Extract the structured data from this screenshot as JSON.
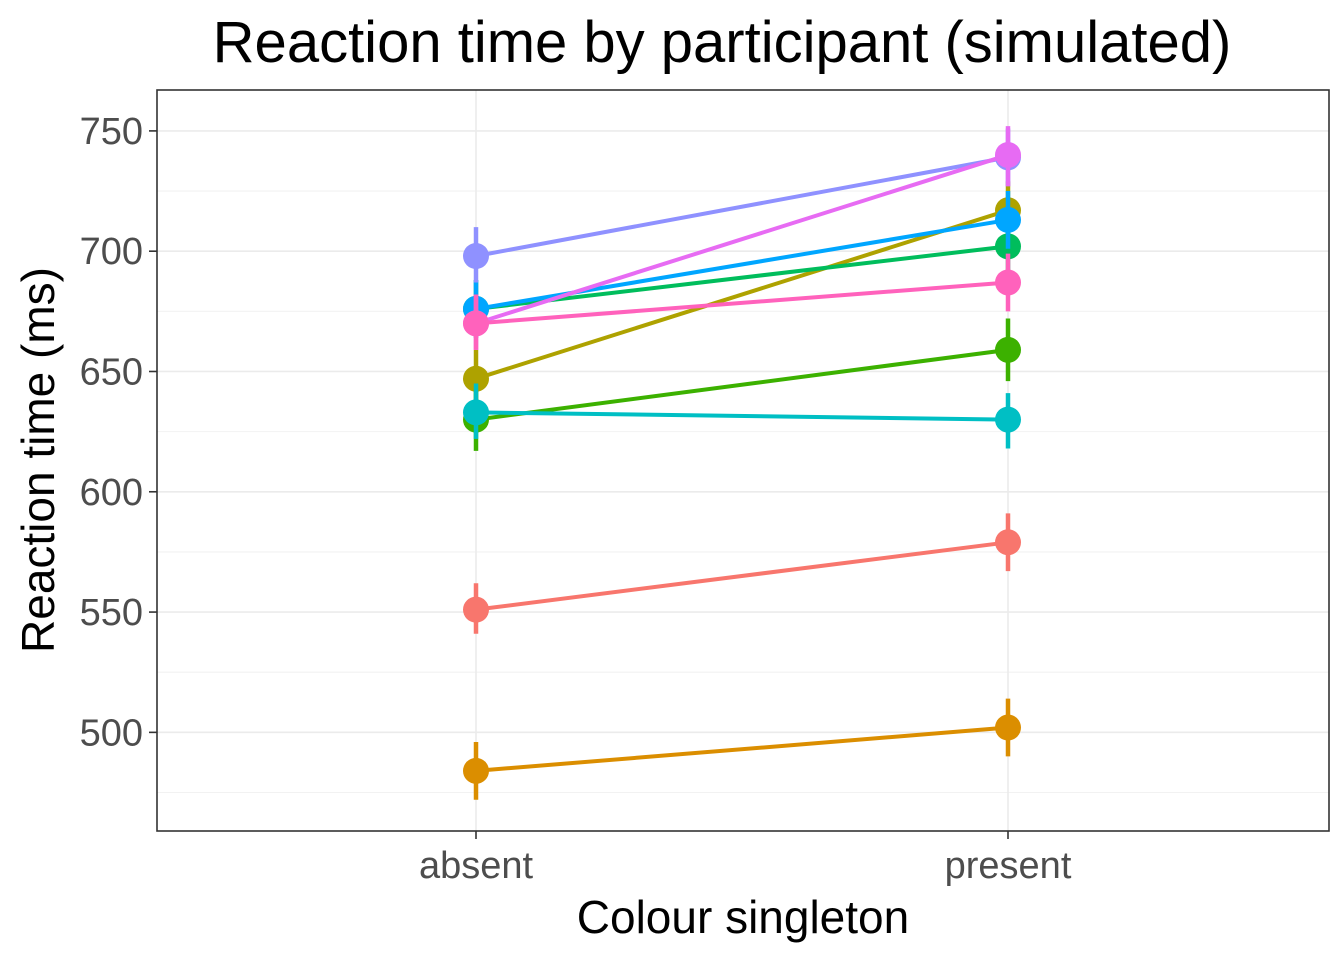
{
  "chart_data": {
    "type": "line",
    "title": "Reaction time by participant (simulated)",
    "xlabel": "Colour singleton",
    "ylabel": "Reaction time (ms)",
    "categories": [
      "absent",
      "present"
    ],
    "ylim": [
      459,
      767
    ],
    "yticks": [
      "500",
      "550",
      "600",
      "650",
      "700",
      "750"
    ],
    "grid": true,
    "legend": "none",
    "series": [
      {
        "color": "#F8766D",
        "values": [
          551,
          579
        ],
        "error": [
          [
            541,
            562
          ],
          [
            567,
            591
          ]
        ]
      },
      {
        "color": "#DB8E00",
        "values": [
          484,
          502
        ],
        "error": [
          [
            472,
            496
          ],
          [
            490,
            514
          ]
        ]
      },
      {
        "color": "#AEA200",
        "values": [
          647,
          717
        ],
        "error": [
          [
            636,
            659
          ],
          [
            705,
            729
          ]
        ]
      },
      {
        "color": "#3CB100",
        "values": [
          630,
          659
        ],
        "error": [
          [
            617,
            642
          ],
          [
            646,
            672
          ]
        ]
      },
      {
        "color": "#00BD5C",
        "values": [
          676,
          702
        ],
        "error": [
          [
            664,
            688
          ],
          [
            690,
            714
          ]
        ]
      },
      {
        "color": "#00BFC4",
        "values": [
          633,
          630
        ],
        "error": [
          [
            622,
            645
          ],
          [
            618,
            641
          ]
        ]
      },
      {
        "color": "#00A6FF",
        "values": [
          676,
          713
        ],
        "error": [
          [
            664,
            688
          ],
          [
            701,
            725
          ]
        ]
      },
      {
        "color": "#8F91FF",
        "values": [
          698,
          739
        ],
        "error": [
          [
            687,
            710
          ],
          [
            727,
            751
          ]
        ]
      },
      {
        "color": "#E76BF3",
        "values": [
          670,
          740
        ],
        "error": [
          [
            659,
            682
          ],
          [
            727,
            752
          ]
        ]
      },
      {
        "color": "#FF62BC",
        "values": [
          670,
          687
        ],
        "error": [
          [
            659,
            682
          ],
          [
            675,
            699
          ]
        ]
      }
    ]
  }
}
